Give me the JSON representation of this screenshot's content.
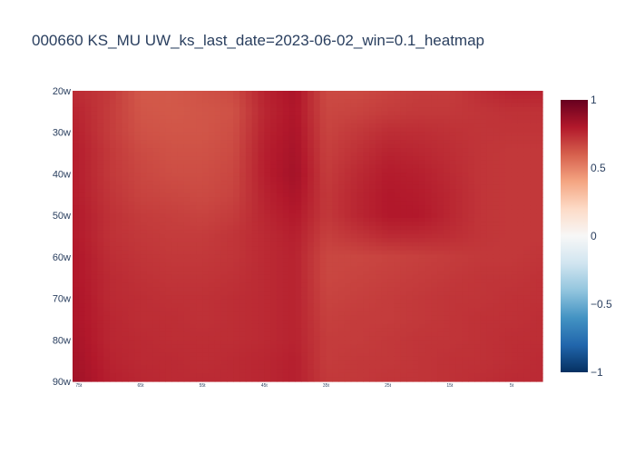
{
  "chart_data": {
    "type": "heatmap",
    "title": "000660 KS_MU UW_ks_last_date=2023-06-02_win=0.1_heatmap",
    "x_tick_labels": [
      "75t",
      "65t",
      "55t",
      "45t",
      "35t",
      "25t",
      "15t",
      "5t"
    ],
    "y_tick_labels": [
      "20w",
      "30w",
      "40w",
      "50w",
      "60w",
      "70w",
      "80w",
      "90w"
    ],
    "x_range": [
      76,
      0
    ],
    "y_range": [
      20,
      90
    ],
    "colorscale": "RdBu",
    "colorscale_stops": [
      [
        0.0,
        "#053061"
      ],
      [
        0.1,
        "#2166ac"
      ],
      [
        0.2,
        "#4393c3"
      ],
      [
        0.3,
        "#92c5de"
      ],
      [
        0.4,
        "#d1e5f0"
      ],
      [
        0.5,
        "#f7f7f7"
      ],
      [
        0.6,
        "#fddbc7"
      ],
      [
        0.7,
        "#f4a582"
      ],
      [
        0.8,
        "#d6604d"
      ],
      [
        0.9,
        "#b2182b"
      ],
      [
        1.0,
        "#67001f"
      ]
    ],
    "zrange": [
      -1,
      1
    ],
    "colorbar_ticks": [
      "1",
      "0.5",
      "0",
      "−0.5",
      "−1"
    ],
    "colorbar_tick_values": [
      1,
      0.5,
      0,
      -0.5,
      -1
    ],
    "x_value_columns": [
      75,
      70,
      65,
      60,
      55,
      50,
      45,
      40,
      35,
      30,
      25,
      20,
      15,
      10,
      5,
      0
    ],
    "y_value_rows": [
      20,
      25,
      30,
      35,
      40,
      45,
      50,
      55,
      60,
      65,
      70,
      75,
      80,
      85,
      90
    ],
    "z": [
      [
        0.74,
        0.71,
        0.62,
        0.62,
        0.64,
        0.66,
        0.77,
        0.82,
        0.66,
        0.66,
        0.68,
        0.7,
        0.7,
        0.74,
        0.77,
        0.77
      ],
      [
        0.76,
        0.7,
        0.63,
        0.62,
        0.63,
        0.64,
        0.76,
        0.81,
        0.67,
        0.68,
        0.7,
        0.71,
        0.71,
        0.72,
        0.73,
        0.73
      ],
      [
        0.77,
        0.7,
        0.64,
        0.63,
        0.63,
        0.65,
        0.77,
        0.82,
        0.68,
        0.71,
        0.74,
        0.74,
        0.73,
        0.72,
        0.72,
        0.72
      ],
      [
        0.78,
        0.71,
        0.66,
        0.64,
        0.64,
        0.66,
        0.78,
        0.83,
        0.69,
        0.73,
        0.77,
        0.76,
        0.74,
        0.72,
        0.71,
        0.71
      ],
      [
        0.78,
        0.71,
        0.67,
        0.65,
        0.65,
        0.67,
        0.78,
        0.84,
        0.7,
        0.75,
        0.79,
        0.78,
        0.75,
        0.72,
        0.71,
        0.71
      ],
      [
        0.78,
        0.72,
        0.68,
        0.67,
        0.66,
        0.68,
        0.77,
        0.82,
        0.71,
        0.76,
        0.8,
        0.79,
        0.76,
        0.72,
        0.71,
        0.71
      ],
      [
        0.79,
        0.73,
        0.7,
        0.69,
        0.68,
        0.7,
        0.76,
        0.8,
        0.71,
        0.76,
        0.8,
        0.8,
        0.76,
        0.72,
        0.71,
        0.71
      ],
      [
        0.79,
        0.73,
        0.71,
        0.7,
        0.7,
        0.72,
        0.75,
        0.78,
        0.69,
        0.72,
        0.75,
        0.75,
        0.74,
        0.72,
        0.71,
        0.71
      ],
      [
        0.8,
        0.74,
        0.72,
        0.71,
        0.71,
        0.72,
        0.75,
        0.77,
        0.67,
        0.67,
        0.68,
        0.69,
        0.7,
        0.71,
        0.71,
        0.72
      ],
      [
        0.8,
        0.75,
        0.73,
        0.72,
        0.72,
        0.73,
        0.75,
        0.77,
        0.67,
        0.68,
        0.69,
        0.7,
        0.71,
        0.72,
        0.72,
        0.73
      ],
      [
        0.81,
        0.75,
        0.74,
        0.73,
        0.73,
        0.74,
        0.75,
        0.77,
        0.68,
        0.69,
        0.7,
        0.71,
        0.72,
        0.72,
        0.73,
        0.73
      ],
      [
        0.81,
        0.76,
        0.74,
        0.74,
        0.73,
        0.74,
        0.75,
        0.77,
        0.69,
        0.7,
        0.7,
        0.71,
        0.72,
        0.73,
        0.73,
        0.74
      ],
      [
        0.82,
        0.76,
        0.75,
        0.74,
        0.74,
        0.74,
        0.75,
        0.77,
        0.7,
        0.7,
        0.71,
        0.72,
        0.72,
        0.73,
        0.74,
        0.74
      ],
      [
        0.83,
        0.77,
        0.75,
        0.75,
        0.74,
        0.75,
        0.76,
        0.78,
        0.7,
        0.71,
        0.71,
        0.72,
        0.73,
        0.73,
        0.74,
        0.75
      ],
      [
        0.84,
        0.78,
        0.76,
        0.75,
        0.75,
        0.75,
        0.76,
        0.78,
        0.71,
        0.71,
        0.72,
        0.72,
        0.73,
        0.74,
        0.75,
        0.75
      ]
    ]
  }
}
